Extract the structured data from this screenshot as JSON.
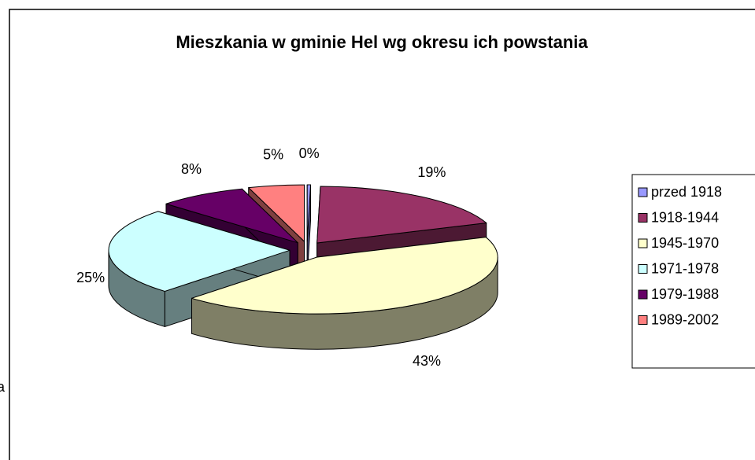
{
  "page_text": "ia",
  "chart_data": {
    "type": "pie3d",
    "title": "Mieszkania w gminie Hel wg okresu ich powstania",
    "categories": [
      "przed 1918",
      "1918-1944",
      "1945-1970",
      "1971-1978",
      "1979-1988",
      "1989-2002"
    ],
    "values": [
      0.3,
      19,
      43,
      25,
      8,
      5
    ],
    "value_labels": [
      "0%",
      "19%",
      "43%",
      "25%",
      "8%",
      "5%"
    ],
    "colors": [
      "#9999ff",
      "#993366",
      "#ffffcc",
      "#ccffff",
      "#660066",
      "#ff8080"
    ],
    "legend": "right"
  }
}
